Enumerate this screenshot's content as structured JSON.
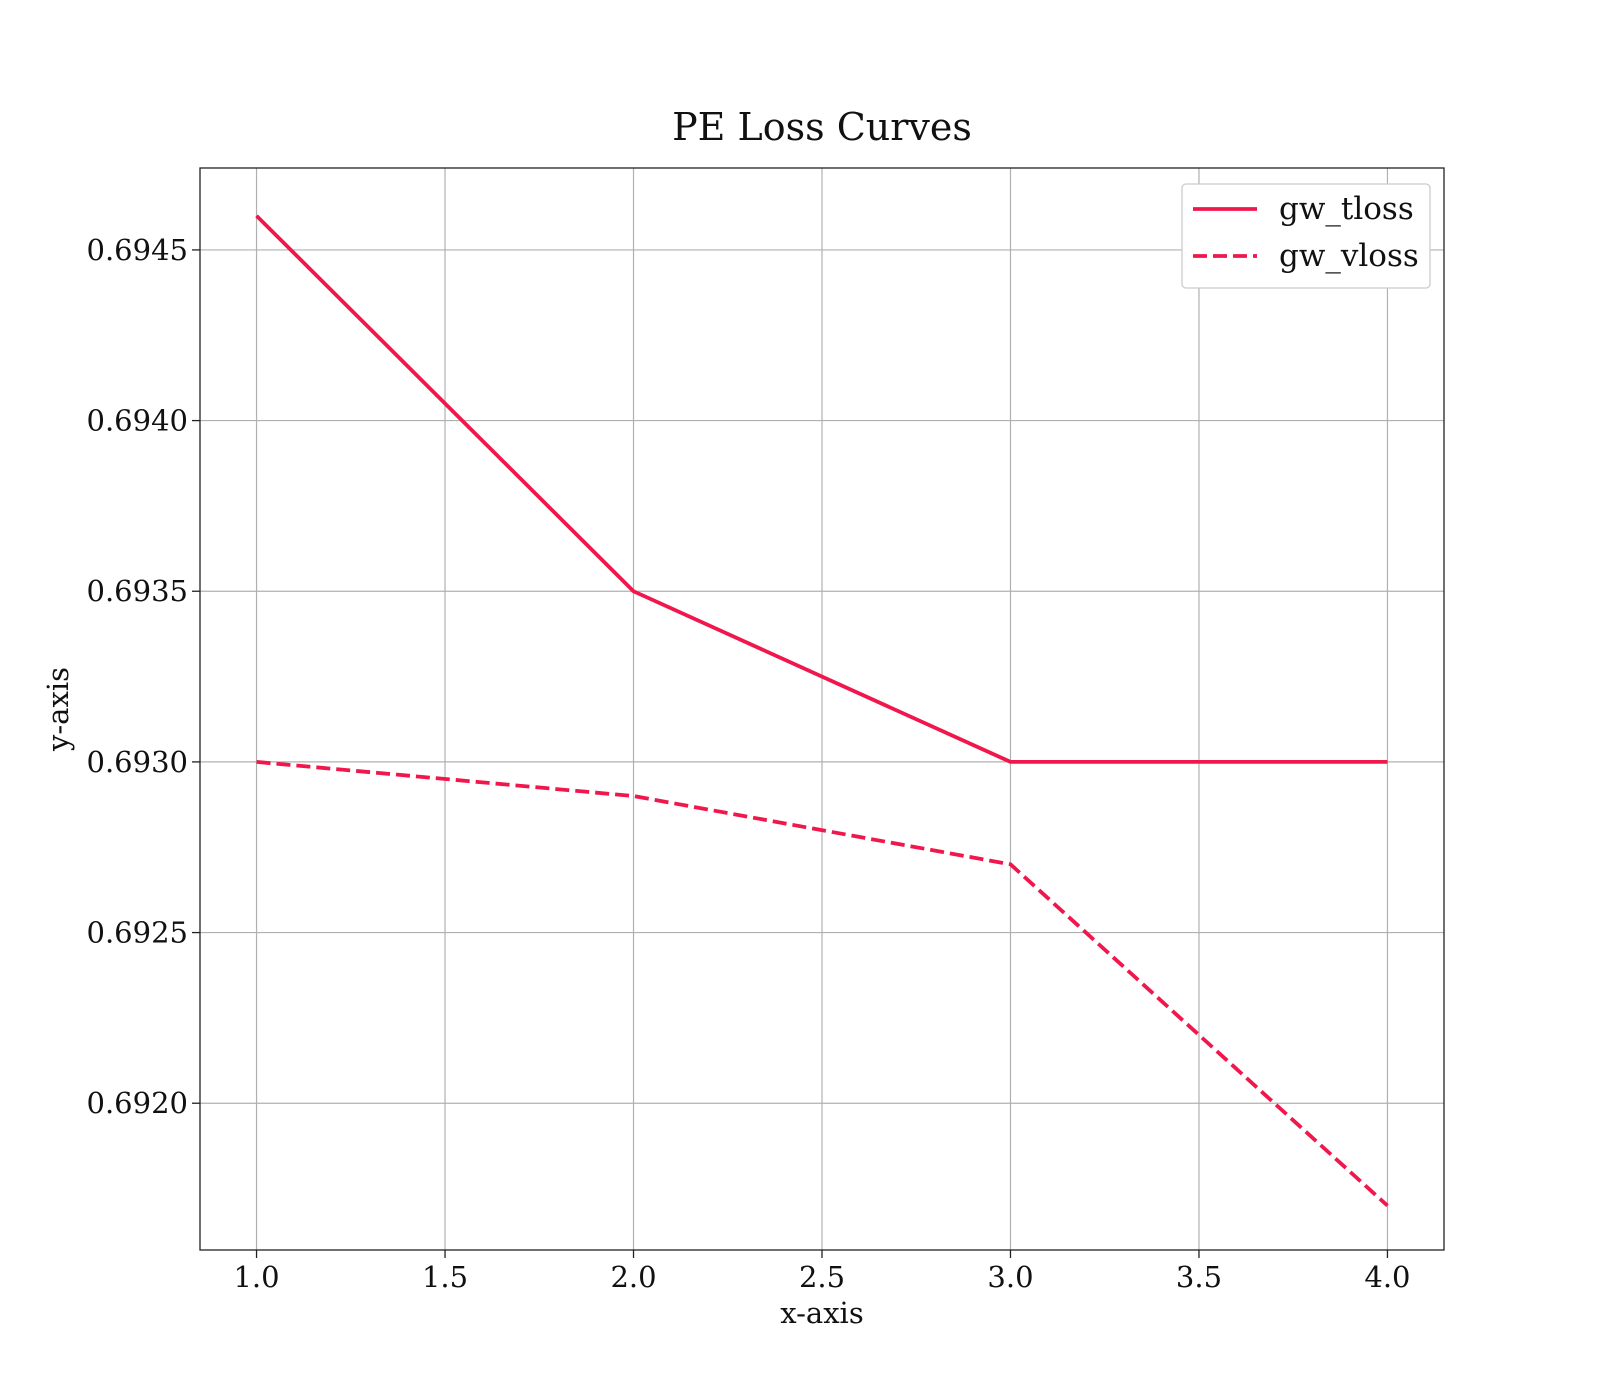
{
  "chart_data": {
    "type": "line",
    "title": "PE Loss Curves",
    "xlabel": "x-axis",
    "ylabel": "y-axis",
    "xlim": [
      0.85,
      4.15
    ],
    "ylim": [
      0.69157,
      0.69474
    ],
    "x_ticks": [
      1.0,
      1.5,
      2.0,
      2.5,
      3.0,
      3.5,
      4.0
    ],
    "x_tick_labels": [
      "1.0",
      "1.5",
      "2.0",
      "2.5",
      "3.0",
      "3.5",
      "4.0"
    ],
    "y_ticks": [
      0.692,
      0.6925,
      0.693,
      0.6935,
      0.694,
      0.6945
    ],
    "y_tick_labels": [
      "0.6920",
      "0.6925",
      "0.6930",
      "0.6935",
      "0.6940",
      "0.6945"
    ],
    "grid": true,
    "legend_position": "top-right",
    "x": [
      1.0,
      2.0,
      3.0,
      4.0
    ],
    "series": [
      {
        "name": "gw_tloss",
        "values": [
          0.6946,
          0.6935,
          0.693,
          0.693
        ],
        "color": "#f0174c",
        "style": "solid"
      },
      {
        "name": "gw_vloss",
        "values": [
          0.693,
          0.6929,
          0.6927,
          0.6917
        ],
        "color": "#f0174c",
        "style": "dashed"
      }
    ]
  }
}
